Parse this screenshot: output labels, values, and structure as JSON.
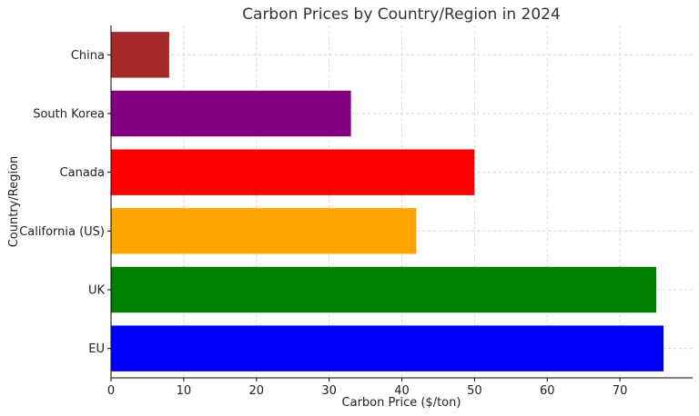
{
  "chart_data": {
    "type": "bar",
    "orientation": "horizontal",
    "title": "Carbon Prices by Country/Region in 2024",
    "xlabel": "Carbon Price ($/ton)",
    "ylabel": "Country/Region",
    "categories": [
      "EU",
      "UK",
      "California (US)",
      "Canada",
      "South Korea",
      "China"
    ],
    "values": [
      76,
      75,
      42,
      50,
      33,
      8
    ],
    "colors": [
      "#0000ff",
      "#008000",
      "#ffa500",
      "#ff0000",
      "#800080",
      "#a52a2a"
    ],
    "xlim": [
      0,
      80
    ],
    "xticks": [
      0,
      10,
      20,
      30,
      40,
      50,
      60,
      70
    ],
    "grid": true
  }
}
